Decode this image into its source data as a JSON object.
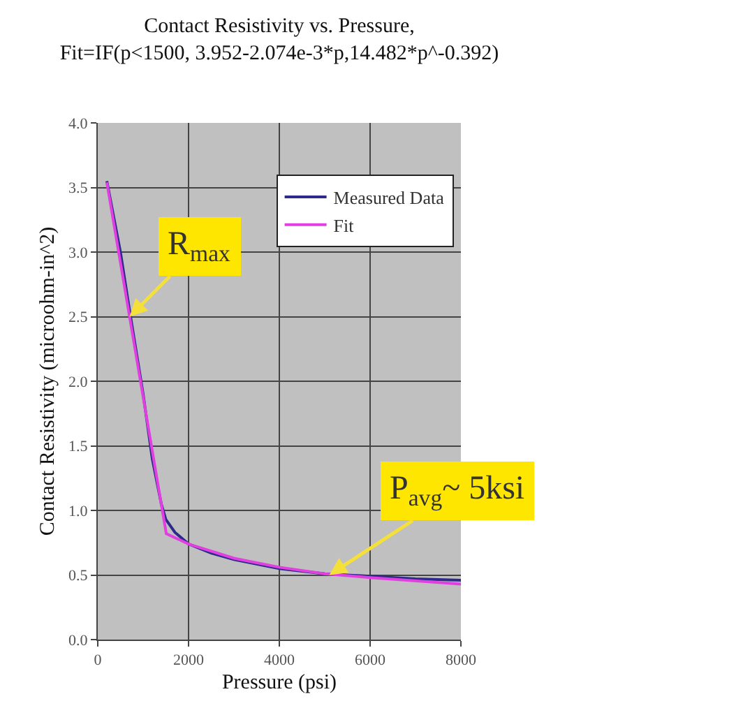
{
  "chart_data": {
    "type": "line",
    "title": "Contact Resistivity vs. Pressure,\nFit=IF(p<1500, 3.952-2.074e-3*p,14.482*p^-0.392)",
    "xlabel": "Pressure (psi)",
    "ylabel": "Contact Resistivity (microohm-in^2)",
    "series": [
      {
        "name": "Measured Data",
        "color": "#2e2a8c",
        "x": [
          200,
          500,
          700,
          1000,
          1200,
          1400,
          1500,
          1700,
          2000,
          2500,
          3000,
          4000,
          5000,
          6000,
          7000,
          8000
        ],
        "values": [
          3.55,
          3.0,
          2.55,
          1.9,
          1.4,
          1.05,
          0.93,
          0.83,
          0.74,
          0.67,
          0.62,
          0.55,
          0.51,
          0.49,
          0.47,
          0.46
        ]
      },
      {
        "name": "Fit",
        "color": "#e040e0",
        "x": [
          200,
          1500,
          1510,
          2000,
          3000,
          4000,
          5000,
          6000,
          8000
        ],
        "values": [
          3.54,
          0.84,
          0.82,
          0.74,
          0.63,
          0.56,
          0.51,
          0.48,
          0.43
        ]
      }
    ],
    "annotations": [
      {
        "text": "R$_{max}$",
        "x": 700,
        "y": 2.5
      },
      {
        "text": "P$_{avg}$~ 5ksi",
        "x": 5100,
        "y": 0.5
      }
    ],
    "xlim": [
      0,
      8000
    ],
    "xticks": [
      0,
      2000,
      4000,
      6000,
      8000
    ],
    "ylim": [
      0,
      4
    ],
    "yticks": [
      {
        "value": 0,
        "label": "0.0"
      },
      {
        "value": 0.5,
        "label": "0.5"
      },
      {
        "value": 1,
        "label": "1.0"
      },
      {
        "value": 1.5,
        "label": "1.5"
      },
      {
        "value": 2,
        "label": "2.0"
      },
      {
        "value": 2.5,
        "label": "2.5"
      },
      {
        "value": 3,
        "label": "3.0"
      },
      {
        "value": 3.5,
        "label": "3.5"
      },
      {
        "value": 4,
        "label": "4.0"
      }
    ],
    "grid": true,
    "legend": "top right",
    "marker": "none",
    "line_style": "solid"
  }
}
